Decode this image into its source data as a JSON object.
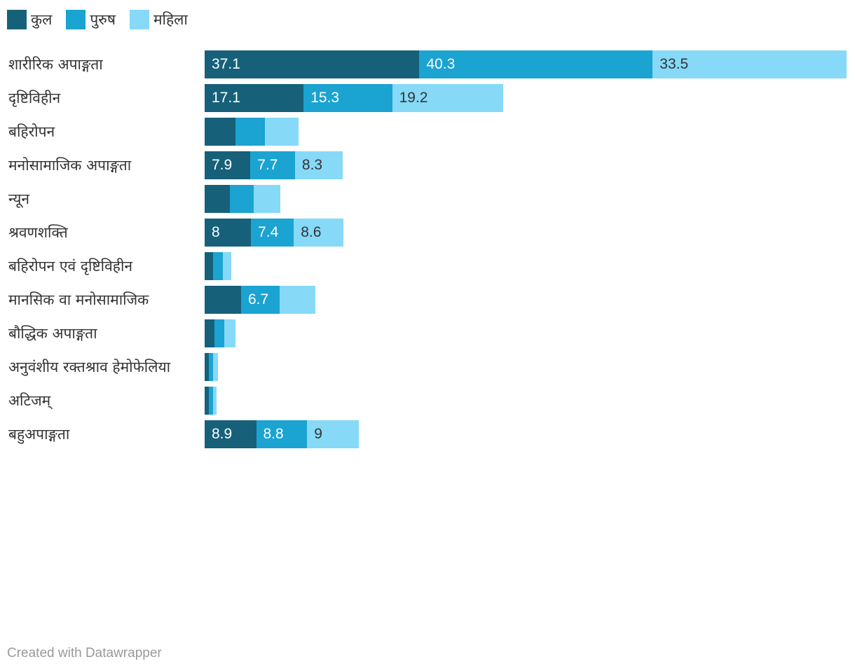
{
  "chart_data": {
    "type": "bar",
    "orientation": "horizontal",
    "stacked": true,
    "title": "",
    "categories": [
      "शारीरिक अपाङ्गता",
      "दृष्टिविहीन",
      "बहिरोपन",
      "मनोसामाजिक अपाङ्गता",
      "न्यून",
      "श्रवणशक्ति",
      "बहिरोपन एवं दृष्टिविहीन",
      "मानसिक वा मनोसामाजिक",
      "बौद्धिक अपाङ्गता",
      "अनुवंशीय रक्तश्राव हेमोफेलिया",
      "अटिजम्",
      "बहुअपाङ्गता"
    ],
    "series": [
      {
        "name": "कुल",
        "color": "#17607a",
        "values": [
          37.1,
          17.1,
          5.3,
          7.9,
          4.4,
          8,
          1.5,
          6.3,
          1.7,
          0.7,
          0.7,
          8.9
        ],
        "labels": [
          "37.1",
          "17.1",
          "",
          "7.9",
          "",
          "8",
          "",
          "",
          "",
          "",
          "",
          "8.9"
        ]
      },
      {
        "name": "पुरुष",
        "color": "#1ba3d1",
        "values": [
          40.3,
          15.3,
          5.1,
          7.7,
          4.1,
          7.4,
          1.6,
          6.7,
          1.7,
          0.7,
          0.7,
          8.8
        ],
        "labels": [
          "40.3",
          "15.3",
          "",
          "7.7",
          "",
          "7.4",
          "",
          "6.7",
          "",
          "",
          "",
          "8.8"
        ]
      },
      {
        "name": "महिला",
        "color": "#86d9f7",
        "values": [
          33.5,
          19.2,
          5.8,
          8.3,
          4.6,
          8.6,
          1.5,
          6.1,
          1.9,
          0.9,
          0.7,
          9
        ],
        "labels": [
          "33.5",
          "19.2",
          "",
          "8.3",
          "",
          "8.6",
          "",
          "",
          "",
          "",
          "",
          "9"
        ]
      }
    ],
    "value_label_colors": [
      "#ffffff",
      "#ffffff",
      "#333333"
    ],
    "legend_position": "top-left",
    "grid": false
  },
  "footer": {
    "credit": "Created with Datawrapper"
  }
}
